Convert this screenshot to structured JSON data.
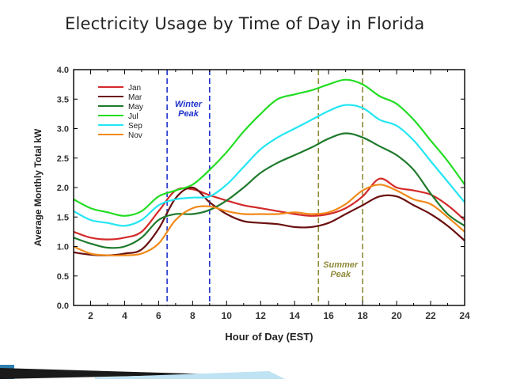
{
  "slide": {
    "title": "Electricity Usage by Time of Day in Florida"
  },
  "chart_data": {
    "type": "line",
    "title": "",
    "xlabel": "Hour of Day (EST)",
    "ylabel": "Average Monthly Total kW",
    "xlim": [
      1,
      24
    ],
    "ylim": [
      0,
      4
    ],
    "xticks": [
      2,
      4,
      6,
      8,
      10,
      12,
      14,
      16,
      18,
      20,
      22,
      24
    ],
    "yticks": [
      0.0,
      0.5,
      1.0,
      1.5,
      2.0,
      2.5,
      3.0,
      3.5,
      4.0
    ],
    "ytick_labels": [
      "0.0",
      "0.5",
      "1.0",
      "1.5",
      "2.0",
      "2.5",
      "3.0",
      "3.5",
      "4.0"
    ],
    "grid": false,
    "legend_position": "top-left",
    "series": [
      {
        "name": "Jan",
        "color": "#d42a2a",
        "x": [
          1,
          2,
          3,
          4,
          5,
          6,
          7,
          8,
          9,
          10,
          11,
          12,
          13,
          14,
          15,
          16,
          17,
          18,
          19,
          20,
          21,
          22,
          23,
          24
        ],
        "values": [
          1.25,
          1.15,
          1.12,
          1.15,
          1.25,
          1.6,
          1.95,
          1.97,
          1.87,
          1.78,
          1.7,
          1.65,
          1.6,
          1.55,
          1.52,
          1.55,
          1.65,
          1.85,
          2.15,
          2.0,
          1.95,
          1.88,
          1.7,
          1.45
        ]
      },
      {
        "name": "Mar",
        "color": "#6b1010",
        "x": [
          1,
          2,
          3,
          4,
          5,
          6,
          7,
          8,
          9,
          10,
          11,
          12,
          13,
          14,
          15,
          16,
          17,
          18,
          19,
          20,
          21,
          22,
          23,
          24
        ],
        "values": [
          0.9,
          0.86,
          0.85,
          0.88,
          0.95,
          1.3,
          1.82,
          2.0,
          1.75,
          1.55,
          1.43,
          1.4,
          1.38,
          1.33,
          1.33,
          1.4,
          1.55,
          1.7,
          1.85,
          1.85,
          1.7,
          1.55,
          1.35,
          1.1
        ]
      },
      {
        "name": "May",
        "color": "#1e7a2c",
        "x": [
          1,
          2,
          3,
          4,
          5,
          6,
          7,
          8,
          9,
          10,
          11,
          12,
          13,
          14,
          15,
          16,
          17,
          18,
          19,
          20,
          21,
          22,
          23,
          24
        ],
        "values": [
          1.15,
          1.05,
          0.98,
          1.0,
          1.15,
          1.45,
          1.55,
          1.55,
          1.62,
          1.78,
          2.0,
          2.25,
          2.42,
          2.55,
          2.68,
          2.83,
          2.92,
          2.85,
          2.7,
          2.55,
          2.3,
          1.9,
          1.55,
          1.35
        ]
      },
      {
        "name": "Jul",
        "color": "#22dd22",
        "x": [
          1,
          2,
          3,
          4,
          5,
          6,
          7,
          8,
          9,
          10,
          11,
          12,
          13,
          14,
          15,
          16,
          17,
          18,
          19,
          20,
          21,
          22,
          23,
          24
        ],
        "values": [
          1.8,
          1.65,
          1.58,
          1.52,
          1.6,
          1.85,
          1.95,
          2.05,
          2.3,
          2.6,
          2.95,
          3.25,
          3.5,
          3.58,
          3.65,
          3.75,
          3.83,
          3.75,
          3.55,
          3.42,
          3.15,
          2.8,
          2.45,
          2.05
        ]
      },
      {
        "name": "Sep",
        "color": "#22e6f2",
        "x": [
          1,
          2,
          3,
          4,
          5,
          6,
          7,
          8,
          9,
          10,
          11,
          12,
          13,
          14,
          15,
          16,
          17,
          18,
          19,
          20,
          21,
          22,
          23,
          24
        ],
        "values": [
          1.6,
          1.45,
          1.4,
          1.35,
          1.45,
          1.7,
          1.8,
          1.83,
          1.85,
          2.05,
          2.35,
          2.65,
          2.85,
          3.0,
          3.15,
          3.3,
          3.4,
          3.35,
          3.15,
          3.05,
          2.8,
          2.45,
          2.1,
          1.75
        ]
      },
      {
        "name": "Nov",
        "color": "#f08a1a",
        "x": [
          1,
          2,
          3,
          4,
          5,
          6,
          7,
          8,
          9,
          10,
          11,
          12,
          13,
          14,
          15,
          16,
          17,
          18,
          19,
          20,
          21,
          22,
          23,
          24
        ],
        "values": [
          1.0,
          0.88,
          0.85,
          0.85,
          0.88,
          1.05,
          1.45,
          1.65,
          1.68,
          1.6,
          1.55,
          1.55,
          1.55,
          1.58,
          1.55,
          1.58,
          1.72,
          1.95,
          2.05,
          1.95,
          1.8,
          1.72,
          1.5,
          1.25
        ]
      }
    ],
    "annotations": [
      {
        "label": "Winter\nPeak",
        "color": "#1f33cc",
        "x_start": 6.5,
        "x_end": 9
      },
      {
        "label": "Summer\nPeak",
        "color": "#8f8a3a",
        "x_start": 15.4,
        "x_end": 18
      }
    ]
  }
}
